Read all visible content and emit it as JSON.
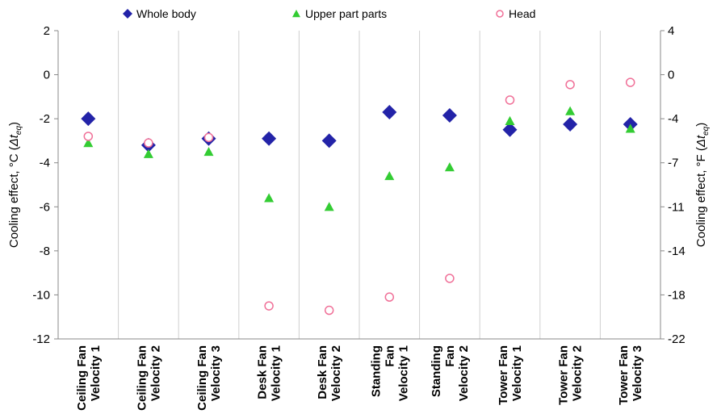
{
  "chart_data": {
    "type": "scatter",
    "categories": [
      [
        "Ceiling Fan",
        "Velocity 1"
      ],
      [
        "Ceiling Fan",
        "Velocity 2"
      ],
      [
        "Ceiling Fan",
        "Velocity 3"
      ],
      [
        "Desk Fan",
        "Velocity 1"
      ],
      [
        "Desk Fan",
        "Velocity 2"
      ],
      [
        "Standing",
        "Fan",
        "Velocity 1"
      ],
      [
        "Standing",
        "Fan",
        "Velocity 2"
      ],
      [
        "Tower Fan",
        "Velocity 1"
      ],
      [
        "Tower Fan",
        "Velocity 2"
      ],
      [
        "Tower Fan",
        "Velocity 3"
      ]
    ],
    "series": [
      {
        "name": "Whole body",
        "marker": "diamond",
        "color": "#2323a8",
        "values": [
          -2.0,
          -3.2,
          -2.9,
          -2.9,
          -3.0,
          -1.7,
          -1.85,
          -2.5,
          -2.25,
          -2.25
        ]
      },
      {
        "name": "Upper part parts",
        "marker": "triangle",
        "color": "#33cc33",
        "values": [
          -3.1,
          -3.6,
          -3.5,
          -5.6,
          -6.0,
          -4.6,
          -4.2,
          -2.1,
          -1.65,
          -2.45
        ]
      },
      {
        "name": "Head",
        "marker": "open-circle",
        "color": "#f07098",
        "values": [
          -2.8,
          -3.1,
          -2.85,
          -10.5,
          -10.7,
          -10.1,
          -9.25,
          -1.15,
          -0.45,
          -0.35
        ]
      }
    ],
    "y_left": {
      "label_main": "Cooling effect, °C (",
      "label_var": "Δt",
      "label_sub": "eq",
      "label_end": ")",
      "range": [
        -12,
        2
      ],
      "ticks": [
        "2",
        "0",
        "-2",
        "-4",
        "-6",
        "-8",
        "-10",
        "-12"
      ]
    },
    "y_right": {
      "label_main": "Cooling effect, °F (",
      "label_var": "Δt",
      "label_sub": "eq",
      "label_end": ")",
      "ticks": [
        "4",
        "0",
        "-4",
        "-7",
        "-11",
        "-14",
        "-18",
        "-22"
      ]
    },
    "grid": "vertical",
    "legend_position": "top"
  }
}
